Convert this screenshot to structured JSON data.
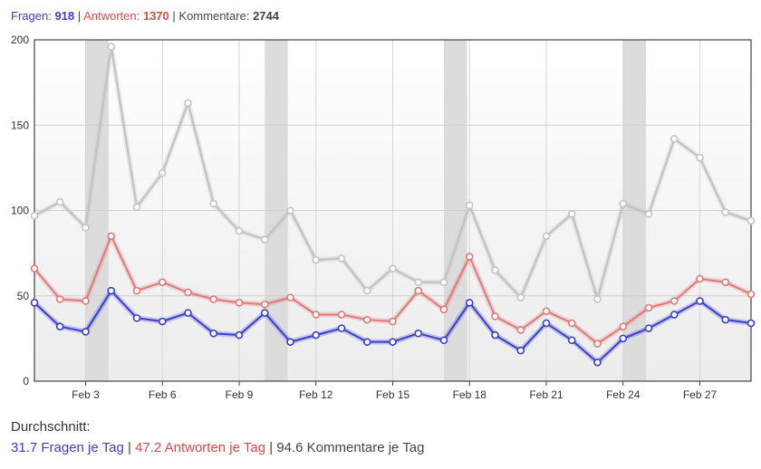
{
  "header": {
    "fragen_label": "Fragen:",
    "fragen_value": "918",
    "antworten_label": "Antworten:",
    "antworten_value": "1370",
    "kommentare_label": "Kommentare:",
    "kommentare_value": "2744",
    "separator": "|"
  },
  "footer": {
    "title": "Durchschnitt:",
    "fragen": "31.7 Fragen je Tag",
    "antworten": "47.2 Antworten je Tag",
    "kommentare": "94.6 Kommentare je Tag",
    "separator": "|"
  },
  "colors": {
    "fragen": "#3a3fd0",
    "antworten": "#e07a7a",
    "kommentare": "#c4c4c4",
    "weekend": "#dcdcdc"
  },
  "chart_data": {
    "type": "line",
    "x_ticks": [
      "Feb 3",
      "Feb 6",
      "Feb 9",
      "Feb 12",
      "Feb 15",
      "Feb 18",
      "Feb 21",
      "Feb 24",
      "Feb 27"
    ],
    "x_tick_days": [
      3,
      6,
      9,
      12,
      15,
      18,
      21,
      24,
      27
    ],
    "x_start_day": 1,
    "y_ticks": [
      0,
      50,
      100,
      150,
      200
    ],
    "ylim": [
      0,
      200
    ],
    "weekend_days": [
      [
        3,
        3.9
      ],
      [
        10,
        10.9
      ],
      [
        17,
        17.9
      ],
      [
        24,
        24.9
      ]
    ],
    "series": [
      {
        "id": "kommentare",
        "values": [
          97,
          105,
          90,
          196,
          102,
          122,
          163,
          104,
          88,
          83,
          100,
          71,
          72,
          53,
          66,
          58,
          58,
          103,
          65,
          49,
          85,
          98,
          48,
          104,
          98,
          142,
          131,
          99,
          94
        ]
      },
      {
        "id": "antworten",
        "values": [
          66,
          48,
          47,
          85,
          53,
          58,
          52,
          48,
          46,
          45,
          49,
          39,
          39,
          36,
          35,
          53,
          42,
          73,
          38,
          30,
          41,
          34,
          22,
          32,
          43,
          47,
          60,
          58,
          51
        ]
      },
      {
        "id": "fragen",
        "values": [
          46,
          32,
          29,
          53,
          37,
          35,
          40,
          28,
          27,
          40,
          23,
          27,
          31,
          23,
          23,
          28,
          24,
          46,
          27,
          18,
          34,
          24,
          11,
          25,
          31,
          39,
          47,
          36,
          34
        ]
      }
    ]
  }
}
